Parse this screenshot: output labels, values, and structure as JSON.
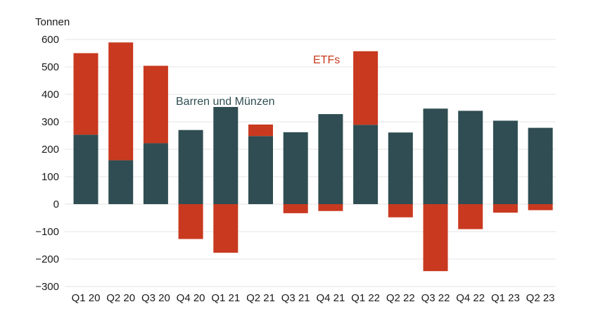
{
  "chart_data": {
    "type": "bar",
    "stacked": true,
    "ylabel": "Tonnen",
    "ylim": [
      -300,
      600
    ],
    "yticks": [
      600,
      500,
      400,
      300,
      200,
      100,
      0,
      -100,
      -200,
      -300
    ],
    "ytick_labels": [
      "600",
      "500",
      "400",
      "300",
      "200",
      "100",
      "0",
      "−100",
      "−200",
      "−300"
    ],
    "grid": true,
    "categories": [
      "Q1 20",
      "Q2 20",
      "Q3 20",
      "Q4 20",
      "Q1 21",
      "Q2 21",
      "Q3 21",
      "Q4 21",
      "Q1 22",
      "Q2 22",
      "Q3 22",
      "Q4 22",
      "Q1 23",
      "Q2 23"
    ],
    "series": [
      {
        "name": "Barren und Münzen",
        "color": "#2f4d52",
        "values": [
          253,
          160,
          222,
          270,
          354,
          248,
          262,
          328,
          289,
          261,
          348,
          340,
          304,
          278
        ]
      },
      {
        "name": "ETFs",
        "color": "#c8391f",
        "values": [
          297,
          429,
          282,
          -127,
          -177,
          42,
          -33,
          -25,
          268,
          -48,
          -244,
          -91,
          -31,
          -22
        ]
      }
    ],
    "annotations": [
      {
        "text": "Barren und Münzen",
        "series": 0
      },
      {
        "text": "ETFs",
        "series": 1
      }
    ]
  }
}
